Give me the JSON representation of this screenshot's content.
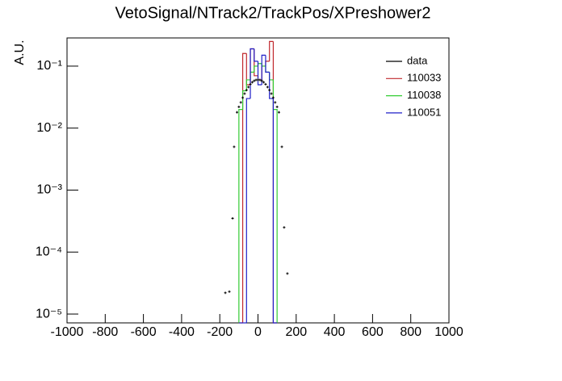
{
  "chart_data": {
    "type": "histogram",
    "title": "VetoSignal/NTrack2/TrackPos/XPreshower2",
    "y_label": "A.U.",
    "log_y": true,
    "legend": "top-right",
    "xlim": [
      -1000,
      1000
    ],
    "xticks": [
      -1000,
      -800,
      -600,
      -400,
      -200,
      0,
      200,
      400,
      600,
      800,
      1000
    ],
    "ylim": [
      7.2e-06,
      0.285
    ],
    "yticks": [
      {
        "value": 1e-05,
        "label": "10⁻⁵"
      },
      {
        "value": 0.0001,
        "label": "10⁻⁴"
      },
      {
        "value": 0.001,
        "label": "10⁻³"
      },
      {
        "value": 0.01,
        "label": "10⁻²"
      },
      {
        "value": 0.1,
        "label": "10⁻¹"
      }
    ],
    "bins": [
      -100,
      -80,
      -60,
      -40,
      -20,
      0,
      20,
      40,
      60,
      80,
      100
    ],
    "points": {
      "name": "data",
      "color": "#000000",
      "x": [
        -171,
        -150,
        -133,
        -125,
        -110,
        -100,
        -90,
        -80,
        -70,
        -60,
        -50,
        -40,
        -30,
        -20,
        -10,
        0,
        10,
        20,
        30,
        40,
        50,
        60,
        70,
        80,
        90,
        100,
        110,
        125,
        137,
        154
      ],
      "values": [
        2.2e-05,
        2.3e-05,
        0.00035,
        0.005,
        0.018,
        0.022,
        0.026,
        0.031,
        0.036,
        0.041,
        0.046,
        0.051,
        0.055,
        0.058,
        0.06,
        0.06,
        0.06,
        0.058,
        0.055,
        0.051,
        0.046,
        0.041,
        0.036,
        0.031,
        0.026,
        0.022,
        0.018,
        0.005,
        0.00025,
        4.5e-05
      ]
    },
    "series": [
      {
        "name": "110033",
        "color": "#c0282d",
        "values": [
          0,
          0.16,
          0.05,
          0.19,
          0.07,
          0.06,
          0.1,
          0.12,
          0.25,
          0
        ]
      },
      {
        "name": "110038",
        "color": "#33cc33",
        "values": [
          0.02,
          0.04,
          0.06,
          0.08,
          0.1,
          0.11,
          0.1,
          0.08,
          0.06,
          0.02
        ]
      },
      {
        "name": "110051",
        "color": "#1f1fc8",
        "values": [
          0,
          0,
          0.03,
          0.19,
          0.12,
          0.05,
          0.15,
          0.08,
          0.03,
          0
        ]
      }
    ]
  }
}
